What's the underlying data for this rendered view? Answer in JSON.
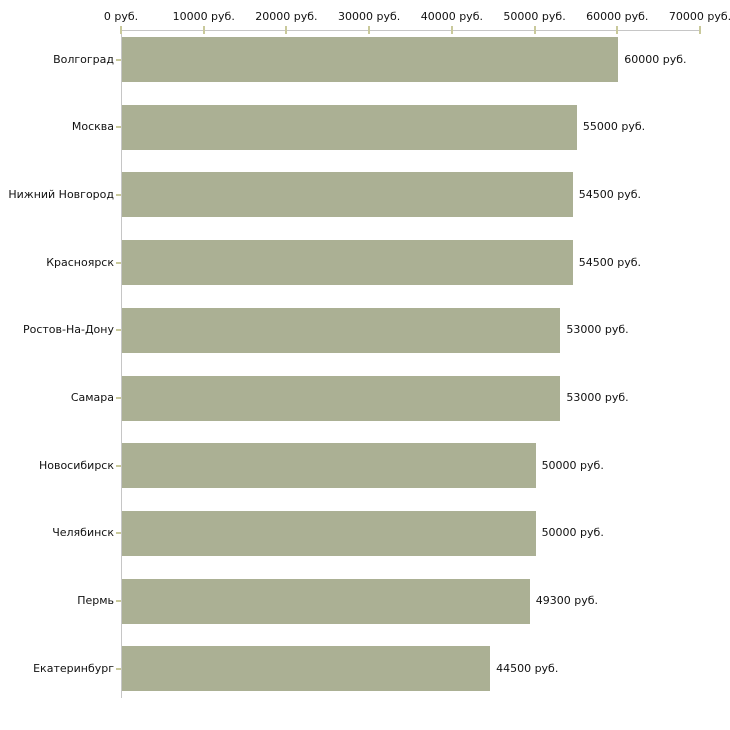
{
  "chart_data": {
    "type": "bar",
    "orientation": "horizontal",
    "title": "",
    "xlabel": "",
    "ylabel": "",
    "categories": [
      "Волгоград",
      "Москва",
      "Нижний Новгород",
      "Красноярск",
      "Ростов-На-Дону",
      "Самара",
      "Новосибирск",
      "Челябинск",
      "Пермь",
      "Екатеринбург"
    ],
    "values": [
      60000,
      55000,
      54500,
      54500,
      53000,
      53000,
      50000,
      50000,
      49300,
      44500
    ],
    "value_labels": [
      "60000 руб.",
      "55000 руб.",
      "54500 руб.",
      "54500 руб.",
      "53000 руб.",
      "53000 руб.",
      "50000 руб.",
      "50000 руб.",
      "49300 руб.",
      "44500 руб."
    ],
    "x_axis": {
      "position": "top",
      "min": 0,
      "max": 70000,
      "tick_step": 10000,
      "ticks": [
        0,
        10000,
        20000,
        30000,
        40000,
        50000,
        60000,
        70000
      ],
      "tick_labels": [
        "0 руб.",
        "10000 руб.",
        "20000 руб.",
        "30000 руб.",
        "40000 руб.",
        "50000 руб.",
        "60000 руб.",
        "70000 руб."
      ]
    },
    "grid": false,
    "legend": false,
    "colors": {
      "bar_fill": "#abb094",
      "axis_line": "#c6c6c6",
      "tick_mark": "#c9c99b",
      "text": "#111111",
      "background": "#ffffff"
    }
  }
}
